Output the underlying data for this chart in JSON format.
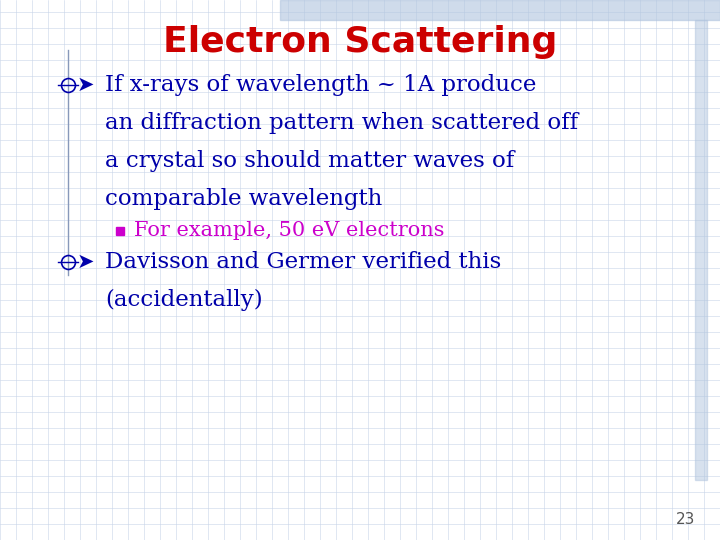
{
  "title": "Electron Scattering",
  "title_color": "#cc0000",
  "title_fontsize": 26,
  "bg_color": "#ffffff",
  "grid_color": "#c8d4e8",
  "bullet1_text_lines": [
    "If x-rays of wavelength ~ 1A produce",
    "an diffraction pattern when scattered off",
    "a crystal so should matter waves of",
    "comparable wavelength"
  ],
  "bullet1_color": "#0000aa",
  "bullet1_fontsize": 16.5,
  "sub_bullet_text": "For example, 50 eV electrons",
  "sub_bullet_color": "#cc00cc",
  "sub_bullet_fontsize": 15,
  "bullet2_text_lines": [
    "Davisson and Germer verified this",
    "(accidentally)"
  ],
  "bullet2_color": "#0000aa",
  "bullet2_fontsize": 16.5,
  "bullet_arrow_color": "#0000aa",
  "page_number": "23",
  "page_number_color": "#555555",
  "page_number_fontsize": 11,
  "top_bar_color": "#b0c4de",
  "right_bar_color": "#b0c4de",
  "left_line_color": "#8899bb"
}
